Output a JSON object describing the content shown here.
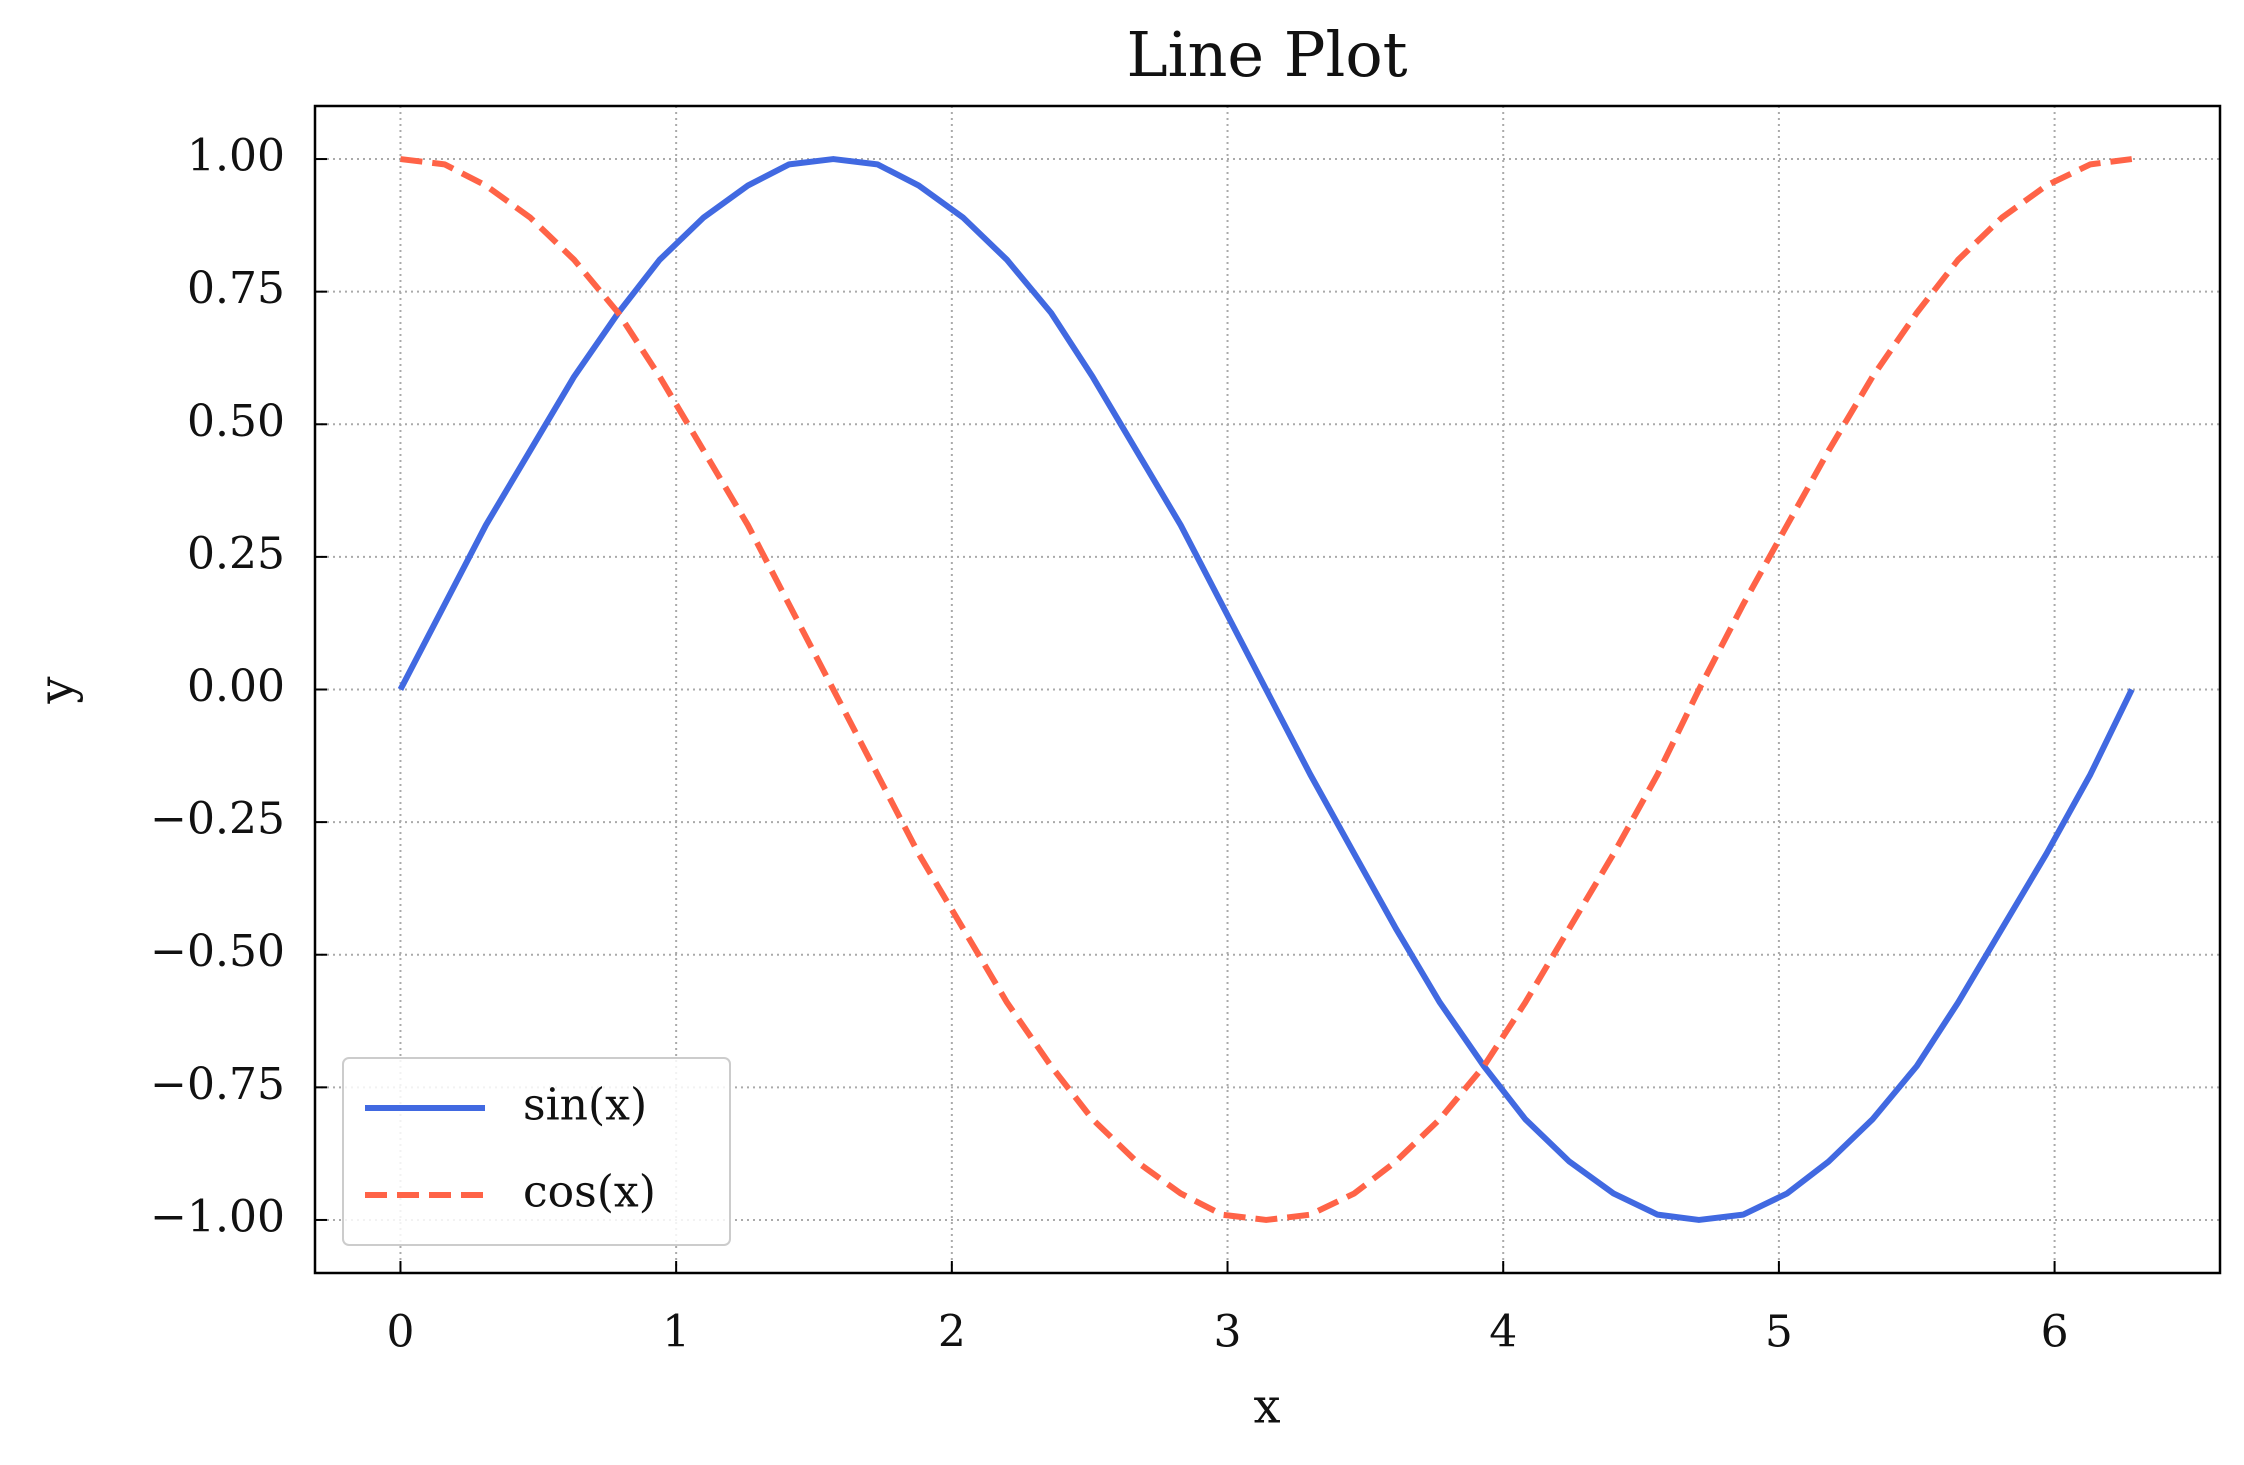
{
  "chart_data": {
    "type": "line",
    "title": "Line Plot",
    "xlabel": "x",
    "ylabel": "y",
    "x": [
      0,
      0.16,
      0.31,
      0.47,
      0.63,
      0.79,
      0.94,
      1.1,
      1.26,
      1.41,
      1.57,
      1.73,
      1.88,
      2.04,
      2.2,
      2.36,
      2.51,
      2.67,
      2.83,
      2.98,
      3.14,
      3.3,
      3.46,
      3.61,
      3.77,
      3.93,
      4.08,
      4.24,
      4.4,
      4.56,
      4.71,
      4.87,
      5.03,
      5.18,
      5.34,
      5.5,
      5.65,
      5.81,
      5.97,
      6.13,
      6.28
    ],
    "series": [
      {
        "name": "sin(x)",
        "color": "#4169e1",
        "linestyle": "solid",
        "values": [
          0,
          0.16,
          0.31,
          0.45,
          0.59,
          0.71,
          0.81,
          0.89,
          0.95,
          0.99,
          1,
          0.99,
          0.95,
          0.89,
          0.81,
          0.71,
          0.59,
          0.45,
          0.31,
          0.16,
          0,
          -0.16,
          -0.31,
          -0.45,
          -0.59,
          -0.71,
          -0.81,
          -0.89,
          -0.95,
          -0.99,
          -1,
          -0.99,
          -0.95,
          -0.89,
          -0.81,
          -0.71,
          -0.59,
          -0.45,
          -0.31,
          -0.16,
          0
        ]
      },
      {
        "name": "cos(x)",
        "color": "#ff6347",
        "linestyle": "dashed",
        "values": [
          1,
          0.99,
          0.95,
          0.89,
          0.81,
          0.71,
          0.59,
          0.45,
          0.31,
          0.16,
          0,
          -0.16,
          -0.31,
          -0.45,
          -0.59,
          -0.71,
          -0.81,
          -0.89,
          -0.95,
          -0.99,
          -1,
          -0.99,
          -0.95,
          -0.89,
          -0.81,
          -0.71,
          -0.59,
          -0.45,
          -0.31,
          -0.16,
          0,
          0.16,
          0.31,
          0.45,
          0.59,
          0.71,
          0.81,
          0.89,
          0.95,
          0.99,
          1
        ]
      }
    ],
    "xlim": [
      -0.31,
      6.6
    ],
    "xticks": [
      0,
      1,
      2,
      3,
      4,
      5,
      6
    ],
    "ylim": [
      -1.1,
      1.1
    ],
    "yticks": [
      {
        "value": -1,
        "label": "−1.00"
      },
      {
        "value": -0.75,
        "label": "−0.75"
      },
      {
        "value": -0.5,
        "label": "−0.50"
      },
      {
        "value": -0.25,
        "label": "−0.25"
      },
      {
        "value": 0,
        "label": "0.00"
      },
      {
        "value": 0.25,
        "label": "0.25"
      },
      {
        "value": 0.5,
        "label": "0.50"
      },
      {
        "value": 0.75,
        "label": "0.75"
      },
      {
        "value": 1,
        "label": "1.00"
      }
    ],
    "grid": true,
    "legend": "lower left"
  }
}
